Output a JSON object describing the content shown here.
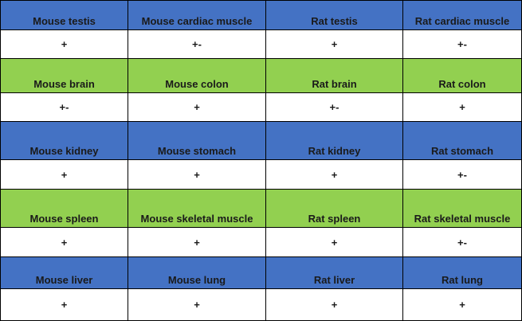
{
  "colors": {
    "blue": "#4472c4",
    "green": "#92d050",
    "white": "#ffffff"
  },
  "rows": [
    {
      "color": "blue",
      "headers": [
        "Mouse testis",
        "Mouse cardiac muscle",
        "Rat testis",
        "Rat cardiac muscle"
      ],
      "values": [
        "+",
        "+-",
        "+",
        "+-"
      ]
    },
    {
      "color": "green",
      "headers": [
        "Mouse brain",
        "Mouse colon",
        "Rat brain",
        "Rat colon"
      ],
      "values": [
        "+-",
        "+",
        "+-",
        "+"
      ]
    },
    {
      "color": "blue",
      "headers": [
        "Mouse kidney",
        "Mouse stomach",
        "Rat kidney",
        "Rat stomach"
      ],
      "values": [
        "+",
        "+",
        "+",
        "+-"
      ]
    },
    {
      "color": "green",
      "headers": [
        "Mouse spleen",
        "Mouse skeletal muscle",
        "Rat spleen",
        "Rat skeletal muscle"
      ],
      "values": [
        "+",
        "+",
        "+",
        "+-"
      ]
    },
    {
      "color": "blue",
      "headers": [
        "Mouse liver",
        "Mouse lung",
        "Rat liver",
        "Rat lung"
      ],
      "values": [
        "+",
        "+",
        "+",
        "+"
      ]
    }
  ]
}
